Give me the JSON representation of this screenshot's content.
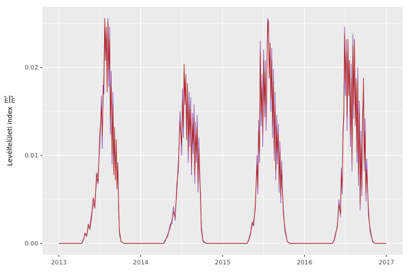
{
  "figure": {
    "kind": "ggplot-time-series",
    "panel_background": "#ebebeb",
    "outer_background": "#ffffff"
  },
  "chart_data": {
    "type": "line",
    "title": "",
    "xlabel": "",
    "ylabel": "Levélfelületi index",
    "ylabel_fraction": {
      "numerator": "m²",
      "denominator": "m²"
    },
    "legend_position": "none",
    "grid": true,
    "grid_color": "#ffffff",
    "panel_background": "#ebebeb",
    "tick_label_color": "#4d4d4d",
    "tick_mark_color": "#333333",
    "xlim": [
      2012.8,
      2017.2
    ],
    "ylim": [
      -0.0013,
      0.0269
    ],
    "x_ticks": [
      {
        "v": 2013,
        "label": "2013"
      },
      {
        "v": 2014,
        "label": "2014"
      },
      {
        "v": 2015,
        "label": "2015"
      },
      {
        "v": 2016,
        "label": "2016"
      },
      {
        "v": 2017,
        "label": "2017"
      }
    ],
    "y_ticks": [
      {
        "v": 0.0,
        "label": "0.00"
      },
      {
        "v": 0.01,
        "label": "0.01"
      },
      {
        "v": 0.02,
        "label": "0.02"
      }
    ],
    "x_minor": [
      2013.5,
      2014.5,
      2015.5,
      2016.5
    ],
    "y_minor": [
      0.005,
      0.015,
      0.025
    ],
    "x": [
      2013.0,
      2013.28,
      2013.3,
      2013.32,
      2013.34,
      2013.36,
      2013.38,
      2013.4,
      2013.42,
      2013.44,
      2013.46,
      2013.48,
      2013.5,
      2013.52,
      2013.53,
      2013.54,
      2013.55,
      2013.56,
      2013.57,
      2013.58,
      2013.59,
      2013.6,
      2013.61,
      2013.62,
      2013.63,
      2013.64,
      2013.65,
      2013.66,
      2013.67,
      2013.68,
      2013.69,
      2013.7,
      2013.71,
      2013.72,
      2013.73,
      2013.74,
      2013.76,
      2013.8,
      2014.28,
      2014.3,
      2014.33,
      2014.36,
      2014.38,
      2014.4,
      2014.42,
      2014.44,
      2014.46,
      2014.48,
      2014.5,
      2014.51,
      2014.52,
      2014.53,
      2014.54,
      2014.55,
      2014.56,
      2014.57,
      2014.58,
      2014.59,
      2014.6,
      2014.61,
      2014.62,
      2014.63,
      2014.64,
      2014.65,
      2014.66,
      2014.67,
      2014.68,
      2014.69,
      2014.7,
      2014.71,
      2014.72,
      2014.73,
      2014.74,
      2014.76,
      2014.8,
      2015.3,
      2015.32,
      2015.34,
      2015.36,
      2015.38,
      2015.4,
      2015.42,
      2015.43,
      2015.44,
      2015.45,
      2015.46,
      2015.47,
      2015.48,
      2015.49,
      2015.5,
      2015.51,
      2015.52,
      2015.53,
      2015.55,
      2015.56,
      2015.57,
      2015.58,
      2015.59,
      2015.6,
      2015.61,
      2015.62,
      2015.63,
      2015.64,
      2015.65,
      2015.66,
      2015.67,
      2015.68,
      2015.69,
      2015.7,
      2015.71,
      2015.72,
      2015.74,
      2015.76,
      2015.79,
      2015.82,
      2016.34,
      2016.36,
      2016.38,
      2016.4,
      2016.42,
      2016.44,
      2016.45,
      2016.46,
      2016.47,
      2016.48,
      2016.49,
      2016.5,
      2016.51,
      2016.52,
      2016.53,
      2016.54,
      2016.55,
      2016.56,
      2016.57,
      2016.58,
      2016.59,
      2016.6,
      2016.61,
      2016.62,
      2016.63,
      2016.64,
      2016.65,
      2016.66,
      2016.67,
      2016.68,
      2016.69,
      2016.7,
      2016.71,
      2016.72,
      2016.73,
      2016.74,
      2016.75,
      2016.76,
      2016.78,
      2016.8,
      2016.83,
      2016.86,
      2017.0
    ],
    "series": [
      {
        "name": "lai-series-purple",
        "color": "#8c4fb4",
        "y": [
          0,
          0,
          0.0005,
          0.001,
          0.001,
          0.0018,
          0.002,
          0.0034,
          0.0044,
          0.0048,
          0.007,
          0.008,
          0.011,
          0.0168,
          0.0108,
          0.018,
          0.017,
          0.0248,
          0.0228,
          0.023,
          0.0192,
          0.0256,
          0.0178,
          0.0246,
          0.0124,
          0.0196,
          0.009,
          0.0172,
          0.0092,
          0.0118,
          0.0086,
          0.0104,
          0.0074,
          0.008,
          0.0046,
          0.001,
          0.0002,
          0,
          0,
          0.0004,
          0.0008,
          0.0022,
          0.0022,
          0.0042,
          0.0026,
          0.0068,
          0.0082,
          0.015,
          0.01,
          0.0176,
          0.012,
          0.0192,
          0.0172,
          0.0178,
          0.0132,
          0.0168,
          0.0092,
          0.0172,
          0.011,
          0.0166,
          0.0078,
          0.0148,
          0.0102,
          0.0158,
          0.0068,
          0.0138,
          0.0092,
          0.0146,
          0.0058,
          0.012,
          0.0072,
          0.0058,
          0.0016,
          0.0002,
          0,
          0,
          0.0005,
          0.0012,
          0.002,
          0.0026,
          0.004,
          0.01,
          0.0056,
          0.014,
          0.0092,
          0.023,
          0.0134,
          0.0192,
          0.011,
          0.022,
          0.0144,
          0.0208,
          0.0128,
          0.0256,
          0.0238,
          0.0202,
          0.0212,
          0.015,
          0.0222,
          0.012,
          0.0198,
          0.0094,
          0.0172,
          0.0072,
          0.0146,
          0.009,
          0.0136,
          0.0058,
          0.0116,
          0.0046,
          0.0094,
          0.0034,
          0.0018,
          0.0002,
          0,
          0,
          0.0004,
          0.0012,
          0.0018,
          0.005,
          0.003,
          0.0086,
          0.0056,
          0.013,
          0.014,
          0.0246,
          0.0168,
          0.0232,
          0.0128,
          0.0218,
          0.0184,
          0.0192,
          0.011,
          0.0204,
          0.0082,
          0.0238,
          0.0142,
          0.0218,
          0.015,
          0.0172,
          0.0092,
          0.02,
          0.0066,
          0.0162,
          0.0038,
          0.0128,
          0.0054,
          0.015,
          0.0172,
          0.0082,
          0.0142,
          0.0048,
          0.0096,
          0.0032,
          0.0018,
          0.0002,
          0,
          0
        ]
      },
      {
        "name": "lai-series-red",
        "color": "#b22222",
        "y": [
          0,
          0,
          0.0004,
          0.0012,
          0.0008,
          0.0022,
          0.0016,
          0.003,
          0.0052,
          0.004,
          0.008,
          0.0068,
          0.0125,
          0.0155,
          0.0122,
          0.0165,
          0.019,
          0.0256,
          0.0208,
          0.0246,
          0.0172,
          0.0252,
          0.0198,
          0.0232,
          0.0142,
          0.0178,
          0.0102,
          0.0158,
          0.0078,
          0.0132,
          0.0072,
          0.0118,
          0.0062,
          0.0092,
          0.0038,
          0.0014,
          0.0002,
          0,
          0,
          0.0003,
          0.001,
          0.0018,
          0.0026,
          0.0036,
          0.003,
          0.006,
          0.0092,
          0.0138,
          0.0112,
          0.0162,
          0.0132,
          0.0204,
          0.0158,
          0.0192,
          0.0118,
          0.0182,
          0.0104,
          0.0158,
          0.0124,
          0.0152,
          0.0088,
          0.0134,
          0.0114,
          0.0144,
          0.0078,
          0.0124,
          0.0104,
          0.0132,
          0.0068,
          0.0108,
          0.0084,
          0.005,
          0.002,
          0.0003,
          0,
          0,
          0.0004,
          0.001,
          0.0024,
          0.002,
          0.0046,
          0.009,
          0.0064,
          0.0128,
          0.0104,
          0.0218,
          0.0148,
          0.0178,
          0.0124,
          0.0208,
          0.0158,
          0.0194,
          0.0144,
          0.0244,
          0.0254,
          0.0188,
          0.0228,
          0.0164,
          0.0208,
          0.0134,
          0.0184,
          0.0108,
          0.0158,
          0.0084,
          0.0134,
          0.0104,
          0.0124,
          0.0068,
          0.0104,
          0.0054,
          0.0084,
          0.004,
          0.0014,
          0.0002,
          0,
          0,
          0.0003,
          0.001,
          0.002,
          0.0044,
          0.0034,
          0.0078,
          0.0064,
          0.0118,
          0.0152,
          0.0238,
          0.0184,
          0.0218,
          0.0144,
          0.0232,
          0.0168,
          0.0208,
          0.0124,
          0.0188,
          0.0094,
          0.0224,
          0.0158,
          0.0232,
          0.0134,
          0.0188,
          0.0104,
          0.0184,
          0.0078,
          0.0148,
          0.0044,
          0.0114,
          0.0064,
          0.0134,
          0.0188,
          0.0094,
          0.0128,
          0.0058,
          0.0084,
          0.004,
          0.0014,
          0.0003,
          0,
          0
        ]
      }
    ]
  }
}
